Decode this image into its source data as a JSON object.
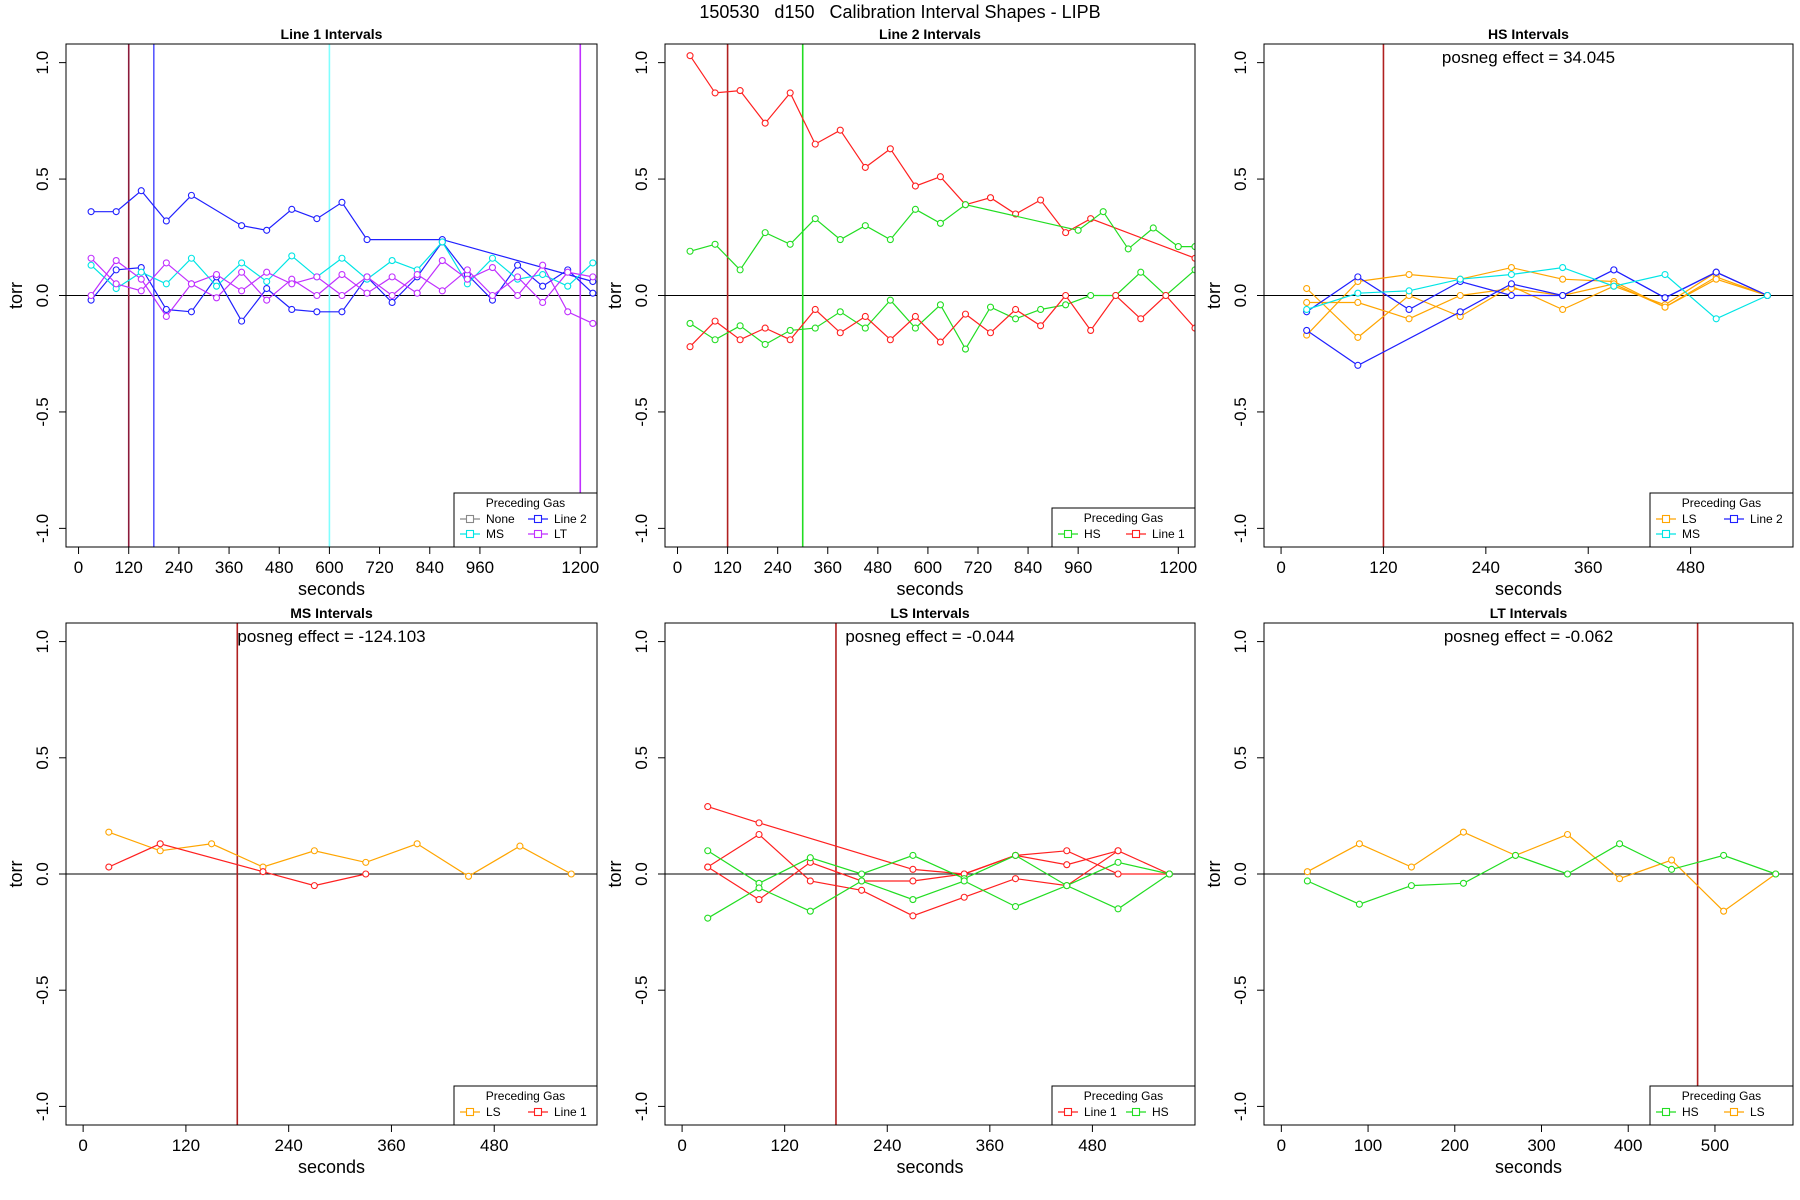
{
  "title": "150530   d150   Calibration Interval Shapes - LIPB",
  "colors": {
    "None": "#888888",
    "Line 1": "#ff2020",
    "Line 2": "#2020ff",
    "HS": "#22dd22",
    "MS": "#00e5e5",
    "LS": "#ffa500",
    "LT": "#c030ff",
    "vline_dark": "#b02020"
  },
  "chart_data": [
    {
      "type": "line",
      "title": "Line 1 Intervals",
      "xlabel": "seconds",
      "ylabel": "torr",
      "xlim": [
        -30,
        1240
      ],
      "ylim": [
        -1.08,
        1.08
      ],
      "xticks": [
        0,
        120,
        240,
        360,
        480,
        600,
        720,
        840,
        960,
        1200
      ],
      "yticks": [
        -1.0,
        -0.5,
        0.0,
        0.5,
        1.0
      ],
      "hline": 0,
      "vlines": [
        {
          "x": 120,
          "color": "#8b1a3a"
        },
        {
          "x": 180,
          "color": "#5a5aff"
        },
        {
          "x": 600,
          "color": "#80ffff"
        },
        {
          "x": 1200,
          "color": "#c030ff"
        }
      ],
      "legend": {
        "title": "Preceding Gas",
        "position": "bottom-right",
        "columns": 2,
        "entries": [
          "None",
          "Line 2",
          "MS",
          "LT"
        ]
      },
      "series": [
        {
          "name": "Line 2",
          "x": [
            30,
            90,
            150,
            210,
            270,
            390,
            450,
            510,
            570,
            630,
            690,
            870,
            1230
          ],
          "y": [
            0.36,
            0.36,
            0.45,
            0.32,
            0.43,
            0.3,
            0.28,
            0.37,
            0.33,
            0.4,
            0.24,
            0.24,
            0.06
          ]
        },
        {
          "name": "Line 2",
          "x": [
            30,
            90,
            150,
            210,
            270,
            330,
            390,
            450,
            510,
            570,
            630,
            690,
            750,
            810,
            870,
            930,
            990,
            1050,
            1110,
            1170,
            1230
          ],
          "y": [
            -0.02,
            0.11,
            0.12,
            -0.06,
            -0.07,
            0.08,
            -0.11,
            0.03,
            -0.06,
            -0.07,
            -0.07,
            0.08,
            -0.03,
            0.08,
            0.23,
            0.09,
            -0.02,
            0.13,
            0.04,
            0.11,
            0.01
          ]
        },
        {
          "name": "MS",
          "x": [
            30,
            90,
            150,
            210,
            270,
            330,
            390,
            450,
            510,
            570,
            630,
            690,
            750,
            810,
            870,
            930,
            990,
            1050,
            1110,
            1170,
            1230
          ],
          "y": [
            0.13,
            0.03,
            0.1,
            0.05,
            0.16,
            0.04,
            0.14,
            0.06,
            0.17,
            0.08,
            0.16,
            0.07,
            0.15,
            0.11,
            0.23,
            0.05,
            0.16,
            0.07,
            0.09,
            0.04,
            0.14
          ]
        },
        {
          "name": "LT",
          "x": [
            30,
            90,
            150,
            210,
            270,
            330,
            390,
            450,
            510,
            570,
            630,
            690,
            750,
            810,
            870,
            930,
            990,
            1050,
            1110,
            1170,
            1230
          ],
          "y": [
            0.16,
            0.05,
            0.02,
            0.14,
            0.05,
            -0.01,
            0.1,
            -0.02,
            0.07,
            0.0,
            0.09,
            0.01,
            0.08,
            0.01,
            0.15,
            0.07,
            0.12,
            0.0,
            0.13,
            -0.07,
            -0.12
          ]
        },
        {
          "name": "LT",
          "x": [
            30,
            90,
            150,
            210,
            270,
            330,
            390,
            450,
            510,
            570,
            630,
            690,
            750,
            810,
            870,
            930,
            990,
            1050,
            1110,
            1170,
            1230
          ],
          "y": [
            0.0,
            0.15,
            0.07,
            -0.09,
            0.05,
            0.09,
            0.02,
            0.1,
            0.05,
            0.08,
            0.0,
            0.08,
            0.0,
            0.09,
            0.02,
            0.11,
            0.0,
            0.08,
            -0.03,
            0.1,
            0.08
          ]
        }
      ]
    },
    {
      "type": "line",
      "title": "Line 2 Intervals",
      "xlabel": "seconds",
      "ylabel": "torr",
      "xlim": [
        -30,
        1240
      ],
      "ylim": [
        -1.08,
        1.08
      ],
      "xticks": [
        0,
        120,
        240,
        360,
        480,
        600,
        720,
        840,
        960,
        1200
      ],
      "yticks": [
        -1.0,
        -0.5,
        0.0,
        0.5,
        1.0
      ],
      "hline": 0,
      "vlines": [
        {
          "x": 120,
          "color": "#b02020"
        },
        {
          "x": 300,
          "color": "#22dd22"
        }
      ],
      "legend": {
        "title": "Preceding Gas",
        "position": "bottom-right",
        "columns": 2,
        "entries": [
          "HS",
          "Line 1"
        ]
      },
      "series": [
        {
          "name": "Line 1",
          "x": [
            30,
            90,
            150,
            210,
            270,
            330,
            390,
            450,
            510,
            570,
            630,
            690,
            750,
            810,
            870,
            930,
            990,
            1240
          ],
          "y": [
            1.03,
            0.87,
            0.88,
            0.74,
            0.87,
            0.65,
            0.71,
            0.55,
            0.63,
            0.47,
            0.51,
            0.39,
            0.42,
            0.35,
            0.41,
            0.27,
            0.33,
            0.16
          ]
        },
        {
          "name": "HS",
          "x": [
            30,
            90,
            150,
            210,
            270,
            330,
            390,
            450,
            510,
            570,
            630,
            690,
            960,
            1020,
            1080,
            1140,
            1200,
            1240
          ],
          "y": [
            0.19,
            0.22,
            0.11,
            0.27,
            0.22,
            0.33,
            0.24,
            0.3,
            0.24,
            0.37,
            0.31,
            0.39,
            0.28,
            0.36,
            0.2,
            0.29,
            0.21,
            0.21
          ]
        },
        {
          "name": "HS",
          "x": [
            30,
            90,
            150,
            210,
            270,
            330,
            390,
            450,
            510,
            570,
            630,
            690,
            750,
            810,
            870,
            930,
            990,
            1050,
            1110,
            1170,
            1240
          ],
          "y": [
            -0.12,
            -0.19,
            -0.13,
            -0.21,
            -0.15,
            -0.14,
            -0.07,
            -0.14,
            -0.02,
            -0.14,
            -0.04,
            -0.23,
            -0.05,
            -0.1,
            -0.06,
            -0.04,
            0.0,
            0.0,
            0.1,
            0.0,
            0.11
          ]
        },
        {
          "name": "Line 1",
          "x": [
            30,
            90,
            150,
            210,
            270,
            330,
            390,
            450,
            510,
            570,
            630,
            690,
            750,
            810,
            870,
            930,
            990,
            1050,
            1110,
            1170,
            1240
          ],
          "y": [
            -0.22,
            -0.11,
            -0.19,
            -0.14,
            -0.19,
            -0.06,
            -0.16,
            -0.09,
            -0.19,
            -0.09,
            -0.2,
            -0.08,
            -0.16,
            -0.06,
            -0.13,
            0.0,
            -0.15,
            0.0,
            -0.1,
            0.0,
            -0.14
          ]
        }
      ]
    },
    {
      "type": "line",
      "title": "HS Intervals",
      "xlabel": "seconds",
      "ylabel": "torr",
      "annotation": "posneg effect = 34.045",
      "xlim": [
        -20,
        600
      ],
      "ylim": [
        -1.08,
        1.08
      ],
      "xticks": [
        0,
        120,
        240,
        360,
        480
      ],
      "yticks": [
        -1.0,
        -0.5,
        0.0,
        0.5,
        1.0
      ],
      "hline": 0,
      "vlines": [
        {
          "x": 120,
          "color": "#b02020"
        }
      ],
      "legend": {
        "title": "Preceding Gas",
        "position": "bottom-right",
        "columns": 2,
        "entries": [
          "LS",
          "Line 2",
          "MS"
        ]
      },
      "series": [
        {
          "name": "LS",
          "x": [
            30,
            90,
            150,
            210,
            270,
            330,
            390,
            450,
            510,
            570
          ],
          "y": [
            -0.17,
            0.06,
            0.09,
            0.07,
            0.12,
            0.07,
            0.06,
            -0.05,
            0.08,
            0.0
          ]
        },
        {
          "name": "LS",
          "x": [
            30,
            90,
            150,
            210,
            270,
            330,
            390,
            450,
            510,
            570
          ],
          "y": [
            0.03,
            -0.18,
            0.0,
            -0.09,
            0.04,
            -0.06,
            0.04,
            -0.04,
            0.1,
            0.0
          ]
        },
        {
          "name": "LS",
          "x": [
            30,
            90,
            150,
            210,
            270,
            330,
            390,
            450,
            510,
            570
          ],
          "y": [
            -0.03,
            -0.03,
            -0.1,
            0.0,
            0.03,
            0.0,
            0.05,
            -0.05,
            0.07,
            0.0
          ]
        },
        {
          "name": "Line 2",
          "x": [
            30,
            90,
            210,
            270,
            330,
            390,
            450,
            510,
            570
          ],
          "y": [
            -0.15,
            -0.3,
            -0.07,
            0.05,
            0.0,
            0.11,
            -0.01,
            0.1,
            0.0
          ]
        },
        {
          "name": "Line 2",
          "x": [
            30,
            90,
            150,
            210,
            270,
            330,
            390,
            450,
            510,
            570
          ],
          "y": [
            -0.07,
            0.08,
            -0.06,
            0.06,
            0.0,
            0.0,
            0.11,
            -0.01,
            0.1,
            0.0
          ]
        },
        {
          "name": "MS",
          "x": [
            30,
            90,
            150,
            210,
            270,
            330,
            390,
            450,
            510,
            570
          ],
          "y": [
            -0.06,
            0.01,
            0.02,
            0.07,
            0.09,
            0.12,
            0.04,
            0.09,
            -0.1,
            0.0
          ]
        }
      ]
    },
    {
      "type": "line",
      "title": "MS Intervals",
      "xlabel": "seconds",
      "ylabel": "torr",
      "annotation": "posneg effect = -124.103",
      "xlim": [
        -20,
        600
      ],
      "ylim": [
        -1.08,
        1.08
      ],
      "xticks": [
        0,
        120,
        240,
        360,
        480
      ],
      "yticks": [
        -1.0,
        -0.5,
        0.0,
        0.5,
        1.0
      ],
      "hline": 0,
      "vlines": [
        {
          "x": 180,
          "color": "#b02020"
        }
      ],
      "legend": {
        "title": "Preceding Gas",
        "position": "bottom-right",
        "columns": 2,
        "entries": [
          "LS",
          "Line 1"
        ]
      },
      "series": [
        {
          "name": "LS",
          "x": [
            30,
            90,
            150,
            210,
            270,
            330,
            390,
            450,
            510,
            570
          ],
          "y": [
            0.18,
            0.1,
            0.13,
            0.03,
            0.1,
            0.05,
            0.13,
            -0.01,
            0.12,
            0.0
          ]
        },
        {
          "name": "Line 1",
          "x": [
            30,
            90,
            210,
            270,
            330
          ],
          "y": [
            0.03,
            0.13,
            0.01,
            -0.05,
            0.0
          ]
        }
      ]
    },
    {
      "type": "line",
      "title": "LS Intervals",
      "xlabel": "seconds",
      "ylabel": "torr",
      "annotation": "posneg effect = -0.044",
      "xlim": [
        -20,
        600
      ],
      "ylim": [
        -1.08,
        1.08
      ],
      "xticks": [
        0,
        120,
        240,
        360,
        480
      ],
      "yticks": [
        -1.0,
        -0.5,
        0.0,
        0.5,
        1.0
      ],
      "hline": 0,
      "vlines": [
        {
          "x": 180,
          "color": "#b02020"
        }
      ],
      "legend": {
        "title": "Preceding Gas",
        "position": "bottom-right",
        "columns": 2,
        "entries": [
          "Line 1",
          "HS"
        ]
      },
      "series": [
        {
          "name": "Line 1",
          "x": [
            30,
            90,
            270,
            330,
            390,
            450,
            510
          ],
          "y": [
            0.29,
            0.22,
            0.02,
            0.0,
            0.08,
            0.04,
            0.1
          ]
        },
        {
          "name": "Line 1",
          "x": [
            30,
            90,
            150,
            210,
            270,
            330,
            390,
            450,
            510,
            570
          ],
          "y": [
            0.03,
            0.17,
            -0.03,
            -0.07,
            -0.18,
            -0.1,
            -0.02,
            -0.05,
            0.1,
            0.0
          ]
        },
        {
          "name": "Line 1",
          "x": [
            30,
            90,
            150,
            210,
            270,
            330,
            390,
            450,
            510,
            570
          ],
          "y": [
            0.03,
            -0.11,
            0.05,
            -0.03,
            -0.03,
            0.0,
            0.08,
            0.1,
            0.0,
            0.0
          ]
        },
        {
          "name": "HS",
          "x": [
            30,
            90,
            150,
            210,
            270,
            330,
            390,
            450,
            510,
            570
          ],
          "y": [
            0.1,
            -0.04,
            0.07,
            0.0,
            0.08,
            -0.02,
            0.08,
            -0.05,
            0.05,
            0.0
          ]
        },
        {
          "name": "HS",
          "x": [
            30,
            90,
            150,
            210,
            270,
            330,
            390,
            450,
            510,
            570
          ],
          "y": [
            -0.19,
            -0.06,
            -0.16,
            -0.03,
            -0.11,
            -0.03,
            -0.14,
            -0.05,
            -0.15,
            0.0
          ]
        }
      ]
    },
    {
      "type": "line",
      "title": "LT Intervals",
      "xlabel": "seconds",
      "ylabel": "torr",
      "annotation": "posneg effect = -0.062",
      "xlim": [
        -20,
        590
      ],
      "ylim": [
        -1.08,
        1.08
      ],
      "xticks": [
        0,
        100,
        200,
        300,
        400,
        500
      ],
      "yticks": [
        -1.0,
        -0.5,
        0.0,
        0.5,
        1.0
      ],
      "hline": 0,
      "vlines": [
        {
          "x": 480,
          "color": "#b02020"
        }
      ],
      "legend": {
        "title": "Preceding Gas",
        "position": "bottom-right",
        "columns": 2,
        "entries": [
          "HS",
          "LS"
        ]
      },
      "series": [
        {
          "name": "LS",
          "x": [
            30,
            90,
            150,
            210,
            270,
            330,
            390,
            450,
            510,
            570
          ],
          "y": [
            0.01,
            0.13,
            0.03,
            0.18,
            0.08,
            0.17,
            -0.02,
            0.06,
            -0.16,
            0.0
          ]
        },
        {
          "name": "HS",
          "x": [
            30,
            90,
            150,
            210,
            270,
            330,
            390,
            450,
            510,
            570
          ],
          "y": [
            -0.03,
            -0.13,
            -0.05,
            -0.04,
            0.08,
            0.0,
            0.13,
            0.02,
            0.08,
            0.0
          ]
        }
      ]
    }
  ]
}
